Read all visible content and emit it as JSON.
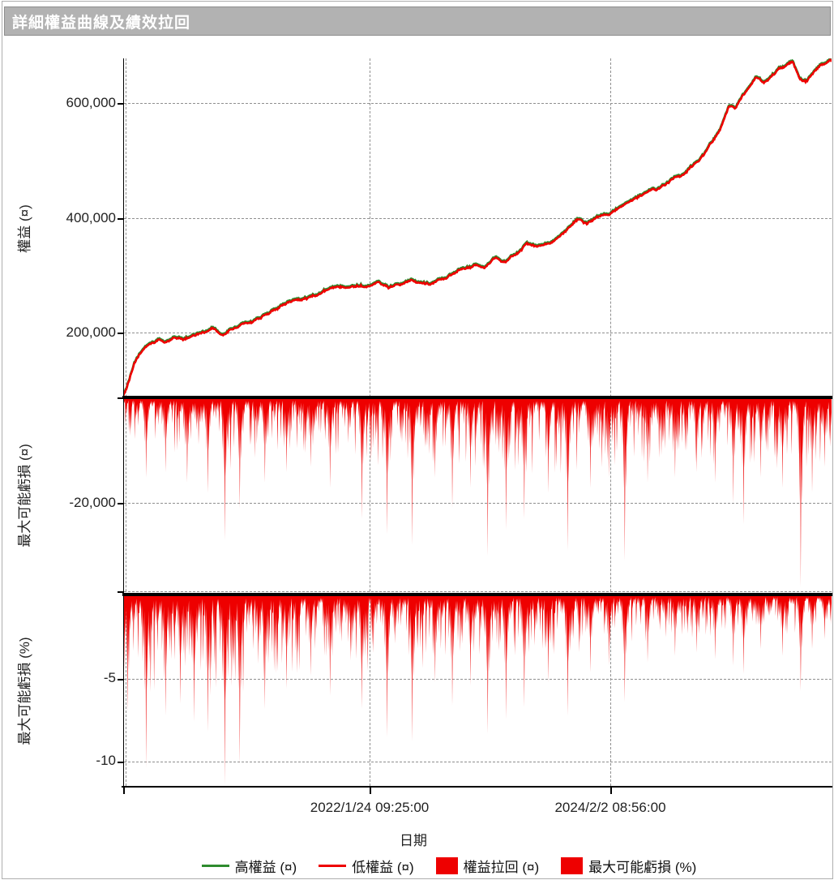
{
  "window": {
    "title": "詳細權益曲線及績效拉回"
  },
  "colors": {
    "series_red": "#ee0000",
    "series_green": "#2e8b2e",
    "titlebar_bg": "#b2b2b2",
    "titlebar_border": "#8e8e8e",
    "title_text": "#ffffff",
    "grid": "#8f8f8f",
    "axis": "#000000",
    "label_text": "#222222"
  },
  "x_axis": {
    "label": "日期",
    "ticks": [
      {
        "t": 0.348,
        "label": "2022/1/24 09:25:00"
      },
      {
        "t": 0.688,
        "label": "2024/2/2 08:56:00"
      }
    ]
  },
  "legend": [
    {
      "swatch": "line",
      "color": "series_green",
      "label": "高權益 (¤)"
    },
    {
      "swatch": "line",
      "color": "series_red",
      "label": "低權益 (¤)"
    },
    {
      "swatch": "box",
      "color": "series_red",
      "label": "權益拉回 (¤)"
    },
    {
      "swatch": "box",
      "color": "series_red",
      "label": "最大可能虧損 (%)"
    }
  ],
  "chart_data": [
    {
      "id": "equity",
      "type": "line",
      "ylabel": "權益 (¤)",
      "ylim": [
        85000,
        680000
      ],
      "grid": true,
      "yticks": [
        {
          "v": 600000,
          "label": "600,000"
        },
        {
          "v": 400000,
          "label": "400,000"
        },
        {
          "v": 200000,
          "label": "200,000"
        }
      ],
      "series": [
        {
          "name": "高權益 (¤)",
          "color": "series_green",
          "offset": 2300
        },
        {
          "name": "低權益 (¤)",
          "color": "series_red",
          "offset": 0
        }
      ],
      "points": [
        [
          0,
          90000
        ],
        [
          0.008,
          118000
        ],
        [
          0.016,
          146000
        ],
        [
          0.024,
          163000
        ],
        [
          0.035,
          176000
        ],
        [
          0.05,
          186000
        ],
        [
          0.06,
          181000
        ],
        [
          0.07,
          189000
        ],
        [
          0.085,
          187000
        ],
        [
          0.1,
          196000
        ],
        [
          0.115,
          204000
        ],
        [
          0.127,
          213000
        ],
        [
          0.14,
          195000
        ],
        [
          0.15,
          205000
        ],
        [
          0.165,
          212000
        ],
        [
          0.18,
          217000
        ],
        [
          0.195,
          226000
        ],
        [
          0.21,
          236000
        ],
        [
          0.225,
          246000
        ],
        [
          0.24,
          254000
        ],
        [
          0.255,
          261000
        ],
        [
          0.27,
          267000
        ],
        [
          0.285,
          272000
        ],
        [
          0.3,
          277000
        ],
        [
          0.315,
          282000
        ],
        [
          0.33,
          286000
        ],
        [
          0.345,
          284000
        ],
        [
          0.36,
          294000
        ],
        [
          0.375,
          280000
        ],
        [
          0.39,
          288000
        ],
        [
          0.405,
          296000
        ],
        [
          0.42,
          291000
        ],
        [
          0.435,
          289000
        ],
        [
          0.45,
          297000
        ],
        [
          0.465,
          303000
        ],
        [
          0.48,
          310000
        ],
        [
          0.495,
          317000
        ],
        [
          0.51,
          310000
        ],
        [
          0.525,
          329000
        ],
        [
          0.54,
          321000
        ],
        [
          0.555,
          338000
        ],
        [
          0.57,
          359000
        ],
        [
          0.585,
          350000
        ],
        [
          0.6,
          358000
        ],
        [
          0.615,
          372000
        ],
        [
          0.63,
          386000
        ],
        [
          0.645,
          400000
        ],
        [
          0.655,
          391000
        ],
        [
          0.67,
          400000
        ],
        [
          0.685,
          405000
        ],
        [
          0.7,
          415000
        ],
        [
          0.715,
          426000
        ],
        [
          0.73,
          437000
        ],
        [
          0.745,
          449000
        ],
        [
          0.76,
          456000
        ],
        [
          0.775,
          466000
        ],
        [
          0.79,
          480000
        ],
        [
          0.805,
          495000
        ],
        [
          0.82,
          515000
        ],
        [
          0.83,
          535000
        ],
        [
          0.84,
          552000
        ],
        [
          0.845,
          565000
        ],
        [
          0.855,
          600000
        ],
        [
          0.865,
          592000
        ],
        [
          0.875,
          615000
        ],
        [
          0.885,
          632000
        ],
        [
          0.895,
          645000
        ],
        [
          0.905,
          638000
        ],
        [
          0.915,
          652000
        ],
        [
          0.925,
          662000
        ],
        [
          0.935,
          668000
        ],
        [
          0.945,
          673000
        ],
        [
          0.955,
          640000
        ],
        [
          0.965,
          636000
        ],
        [
          0.975,
          655000
        ],
        [
          0.985,
          668000
        ],
        [
          1,
          676000
        ]
      ]
    },
    {
      "id": "drawdown_currency",
      "type": "area",
      "ylabel": "最大可能虧損 (¤)",
      "ylim": [
        -37000,
        0
      ],
      "yticks": [
        {
          "v": -20000,
          "label": "-20,000"
        }
      ],
      "envelope": [
        [
          0,
          7000
        ],
        [
          0.05,
          9500
        ],
        [
          0.1,
          10500
        ],
        [
          0.15,
          12000
        ],
        [
          0.2,
          10000
        ],
        [
          0.25,
          9000
        ],
        [
          0.3,
          10000
        ],
        [
          0.35,
          11000
        ],
        [
          0.4,
          12000
        ],
        [
          0.45,
          11000
        ],
        [
          0.5,
          12500
        ],
        [
          0.55,
          12000
        ],
        [
          0.6,
          13000
        ],
        [
          0.65,
          12000
        ],
        [
          0.7,
          12000
        ],
        [
          0.75,
          10500
        ],
        [
          0.8,
          11000
        ],
        [
          0.85,
          12000
        ],
        [
          0.9,
          11000
        ],
        [
          0.95,
          12500
        ],
        [
          1,
          10000
        ]
      ],
      "spikes": [
        [
          0.032,
          15000
        ],
        [
          0.06,
          14000
        ],
        [
          0.09,
          16000
        ],
        [
          0.12,
          18000
        ],
        [
          0.144,
          27000
        ],
        [
          0.164,
          21000
        ],
        [
          0.2,
          16000
        ],
        [
          0.23,
          14000
        ],
        [
          0.265,
          13000
        ],
        [
          0.292,
          17000
        ],
        [
          0.337,
          23000
        ],
        [
          0.373,
          26000
        ],
        [
          0.408,
          28000
        ],
        [
          0.44,
          15000
        ],
        [
          0.464,
          21000
        ],
        [
          0.49,
          17000
        ],
        [
          0.515,
          30000
        ],
        [
          0.541,
          25000
        ],
        [
          0.566,
          23000
        ],
        [
          0.6,
          18000
        ],
        [
          0.627,
          29000
        ],
        [
          0.66,
          17000
        ],
        [
          0.685,
          15000
        ],
        [
          0.708,
          31000
        ],
        [
          0.74,
          16000
        ],
        [
          0.779,
          15000
        ],
        [
          0.81,
          14000
        ],
        [
          0.835,
          16000
        ],
        [
          0.861,
          20000
        ],
        [
          0.876,
          24000
        ],
        [
          0.9,
          15000
        ],
        [
          0.93,
          17000
        ],
        [
          0.957,
          36000
        ],
        [
          0.972,
          18000
        ],
        [
          0.99,
          13000
        ]
      ]
    },
    {
      "id": "drawdown_percent",
      "type": "area",
      "ylabel": "最大可能虧損 (%)",
      "ylim": [
        -11.5,
        0
      ],
      "yticks": [
        {
          "v": -5,
          "label": "-5"
        },
        {
          "v": -10,
          "label": "-10"
        }
      ],
      "envelope": [
        [
          0,
          5.5
        ],
        [
          0.05,
          5.2
        ],
        [
          0.1,
          5.0
        ],
        [
          0.15,
          5.5
        ],
        [
          0.2,
          4.5
        ],
        [
          0.25,
          4.0
        ],
        [
          0.3,
          4.0
        ],
        [
          0.35,
          4.0
        ],
        [
          0.4,
          4.0
        ],
        [
          0.45,
          3.6
        ],
        [
          0.5,
          3.6
        ],
        [
          0.55,
          3.4
        ],
        [
          0.6,
          3.2
        ],
        [
          0.65,
          3.0
        ],
        [
          0.7,
          2.8
        ],
        [
          0.75,
          2.3
        ],
        [
          0.8,
          2.2
        ],
        [
          0.85,
          2.2
        ],
        [
          0.9,
          2.0
        ],
        [
          0.95,
          2.2
        ],
        [
          1,
          1.8
        ]
      ],
      "spikes": [
        [
          0.007,
          7.0
        ],
        [
          0.032,
          10.4
        ],
        [
          0.06,
          7.2
        ],
        [
          0.08,
          6.5
        ],
        [
          0.1,
          7.6
        ],
        [
          0.12,
          8.2
        ],
        [
          0.144,
          11.4
        ],
        [
          0.164,
          10.2
        ],
        [
          0.2,
          6.8
        ],
        [
          0.23,
          5.6
        ],
        [
          0.265,
          4.8
        ],
        [
          0.292,
          6.0
        ],
        [
          0.337,
          6.8
        ],
        [
          0.373,
          8.5
        ],
        [
          0.408,
          8.8
        ],
        [
          0.44,
          5.2
        ],
        [
          0.464,
          6.6
        ],
        [
          0.49,
          5.4
        ],
        [
          0.515,
          8.3
        ],
        [
          0.541,
          7.4
        ],
        [
          0.566,
          6.7
        ],
        [
          0.6,
          5.2
        ],
        [
          0.627,
          7.2
        ],
        [
          0.66,
          4.6
        ],
        [
          0.685,
          4.2
        ],
        [
          0.708,
          6.4
        ],
        [
          0.74,
          4.0
        ],
        [
          0.779,
          3.6
        ],
        [
          0.81,
          3.4
        ],
        [
          0.835,
          3.8
        ],
        [
          0.861,
          4.2
        ],
        [
          0.876,
          4.7
        ],
        [
          0.9,
          3.2
        ],
        [
          0.93,
          3.6
        ],
        [
          0.957,
          5.7
        ],
        [
          0.972,
          3.2
        ],
        [
          0.99,
          2.6
        ]
      ]
    }
  ]
}
